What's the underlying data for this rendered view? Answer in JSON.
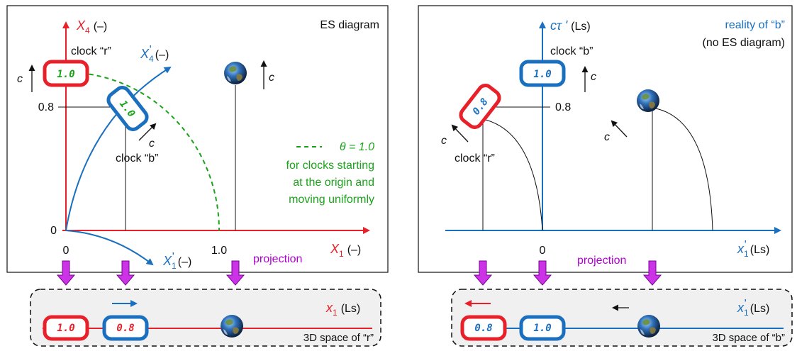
{
  "left": {
    "title": "ES diagram",
    "axis_x4": "X",
    "axis_x4_sub": "4",
    "axis_x4_unit": "(–)",
    "axis_x4p": "X",
    "axis_x4p_sub": "4",
    "axis_x4p_prime": "'",
    "axis_x4p_unit": "(–)",
    "axis_x1": "X",
    "axis_x1_sub": "1",
    "axis_x1_unit": "(–)",
    "axis_x1p": "X",
    "axis_x1p_sub": "1",
    "axis_x1p_prime": "'",
    "axis_x1p_unit": "(–)",
    "clock_r_label": "clock “r”",
    "clock_b_label": "clock “b”",
    "clock_r_value": "1.0",
    "clock_b_value": "1.0",
    "c_label": "c",
    "tick_08": "0.8",
    "tick_0y": "0",
    "tick_0x": "0",
    "tick_10": "1.0",
    "theta_legend": "θ = 1.0",
    "note_line1": "for clocks starting",
    "note_line2": "at the origin and",
    "note_line3": "moving uniformly",
    "projection": "projection"
  },
  "right": {
    "title_line1": "reality of “b”",
    "title_line2": "(no ES diagram)",
    "axis_ct": "cτ '",
    "axis_ct_unit": "(Ls)",
    "axis_x1p": "x",
    "axis_x1p_sub": "1",
    "axis_x1p_prime": "'",
    "axis_x1p_unit": "(Ls)",
    "clock_b_label": "clock “b”",
    "clock_r_label": "clock “r”",
    "clock_b_value": "1.0",
    "clock_r_value": "0.8",
    "c_label": "c",
    "tick_08": "0.8",
    "tick_0": "0",
    "projection": "projection"
  },
  "bottom_left": {
    "axis": "x",
    "axis_sub": "1",
    "axis_unit": "(Ls)",
    "clock_r_value": "1.0",
    "clock_b_value": "0.8",
    "caption": "3D space of “r”"
  },
  "bottom_right": {
    "axis": "x",
    "axis_sub": "1",
    "axis_prime": "'",
    "axis_unit": "(Ls)",
    "clock_r_value": "0.8",
    "clock_b_value": "1.0",
    "caption": "3D space of “b”"
  },
  "colors": {
    "red": "#e8202a",
    "blue": "#1a6fbf",
    "green": "#1aa31a",
    "purple": "#b000d0"
  }
}
